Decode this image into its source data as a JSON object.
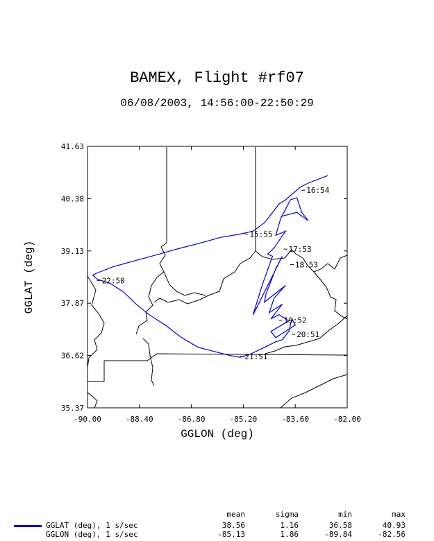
{
  "chart_data": {
    "type": "line",
    "title": "BAMEX, Flight #rf07",
    "subtitle": "06/08/2003, 14:56:00-22:50:29",
    "xlabel": "GGLON (deg)",
    "ylabel": "GGLAT (deg)",
    "xlim": [
      -90.0,
      -82.0
    ],
    "ylim": [
      35.37,
      41.63
    ],
    "xticks": [
      "-90.00",
      "-88.40",
      "-86.80",
      "-85.20",
      "-83.60",
      "-82.00"
    ],
    "yticks": [
      "35.37",
      "36.62",
      "37.87",
      "39.13",
      "40.38",
      "41.63"
    ],
    "line_color": "#0000c8",
    "track": [
      [
        -82.6,
        40.93
      ],
      [
        -83.2,
        40.75
      ],
      [
        -83.45,
        40.65
      ],
      [
        -83.9,
        40.35
      ],
      [
        -84.1,
        40.25
      ],
      [
        -84.3,
        40.05
      ],
      [
        -84.55,
        39.8
      ],
      [
        -84.9,
        39.6
      ],
      [
        -85.3,
        39.53
      ],
      [
        -85.9,
        39.45
      ],
      [
        -86.6,
        39.3
      ],
      [
        -87.2,
        39.18
      ],
      [
        -87.8,
        39.05
      ],
      [
        -88.5,
        38.9
      ],
      [
        -89.2,
        38.75
      ],
      [
        -89.7,
        38.6
      ],
      [
        -89.84,
        38.55
      ],
      [
        -89.7,
        38.45
      ],
      [
        -89.3,
        38.35
      ],
      [
        -88.9,
        38.15
      ],
      [
        -88.5,
        37.85
      ],
      [
        -88.1,
        37.6
      ],
      [
        -87.6,
        37.35
      ],
      [
        -87.1,
        37.05
      ],
      [
        -86.6,
        36.82
      ],
      [
        -86.1,
        36.72
      ],
      [
        -85.6,
        36.62
      ],
      [
        -85.3,
        36.58
      ],
      [
        -85.0,
        36.65
      ],
      [
        -84.6,
        36.8
      ],
      [
        -84.2,
        36.95
      ],
      [
        -84.0,
        37.0
      ],
      [
        -83.8,
        37.2
      ],
      [
        -83.7,
        37.5
      ],
      [
        -83.6,
        37.35
      ],
      [
        -84.2,
        37.05
      ],
      [
        -84.35,
        37.2
      ],
      [
        -83.8,
        37.45
      ],
      [
        -84.1,
        37.6
      ],
      [
        -84.35,
        37.5
      ],
      [
        -84.0,
        37.85
      ],
      [
        -84.4,
        37.65
      ],
      [
        -84.25,
        38.0
      ],
      [
        -83.9,
        38.3
      ],
      [
        -84.55,
        37.9
      ],
      [
        -84.5,
        38.1
      ],
      [
        -84.2,
        38.7
      ],
      [
        -84.0,
        39.0
      ],
      [
        -84.8,
        37.75
      ],
      [
        -84.9,
        37.6
      ],
      [
        -84.6,
        38.35
      ],
      [
        -84.3,
        39.0
      ],
      [
        -84.45,
        39.05
      ],
      [
        -84.25,
        39.2
      ],
      [
        -83.9,
        39.6
      ],
      [
        -84.2,
        39.5
      ],
      [
        -84.05,
        39.9
      ],
      [
        -83.75,
        40.35
      ],
      [
        -83.55,
        40.4
      ],
      [
        -83.4,
        40.05
      ],
      [
        -83.2,
        39.85
      ],
      [
        -83.55,
        40.05
      ],
      [
        -84.05,
        39.95
      ]
    ],
    "time_labels": [
      {
        "text": "16:54",
        "lon": -83.3,
        "lat": 40.58
      },
      {
        "text": "15:55",
        "lon": -85.05,
        "lat": 39.53
      },
      {
        "text": "17:53",
        "lon": -83.85,
        "lat": 39.17
      },
      {
        "text": "18:53",
        "lon": -83.65,
        "lat": 38.8
      },
      {
        "text": "22:50",
        "lon": -89.6,
        "lat": 38.42
      },
      {
        "text": "19:52",
        "lon": -84.0,
        "lat": 37.47
      },
      {
        "text": "20:51",
        "lon": -83.6,
        "lat": 37.13
      },
      {
        "text": "21:51",
        "lon": -85.2,
        "lat": 36.6
      }
    ],
    "stats_header": {
      "mean": "mean",
      "sigma": "sigma",
      "min": "min",
      "max": "max"
    },
    "stats": [
      {
        "name": "GGLAT (deg), 1 s/sec",
        "mean": "38.56",
        "sigma": "1.16",
        "min": "36.58",
        "max": "40.93"
      },
      {
        "name": "GGLON (deg), 1 s/sec",
        "mean": "-85.13",
        "sigma": "1.86",
        "min": "-89.84",
        "max": "-82.56"
      }
    ]
  }
}
